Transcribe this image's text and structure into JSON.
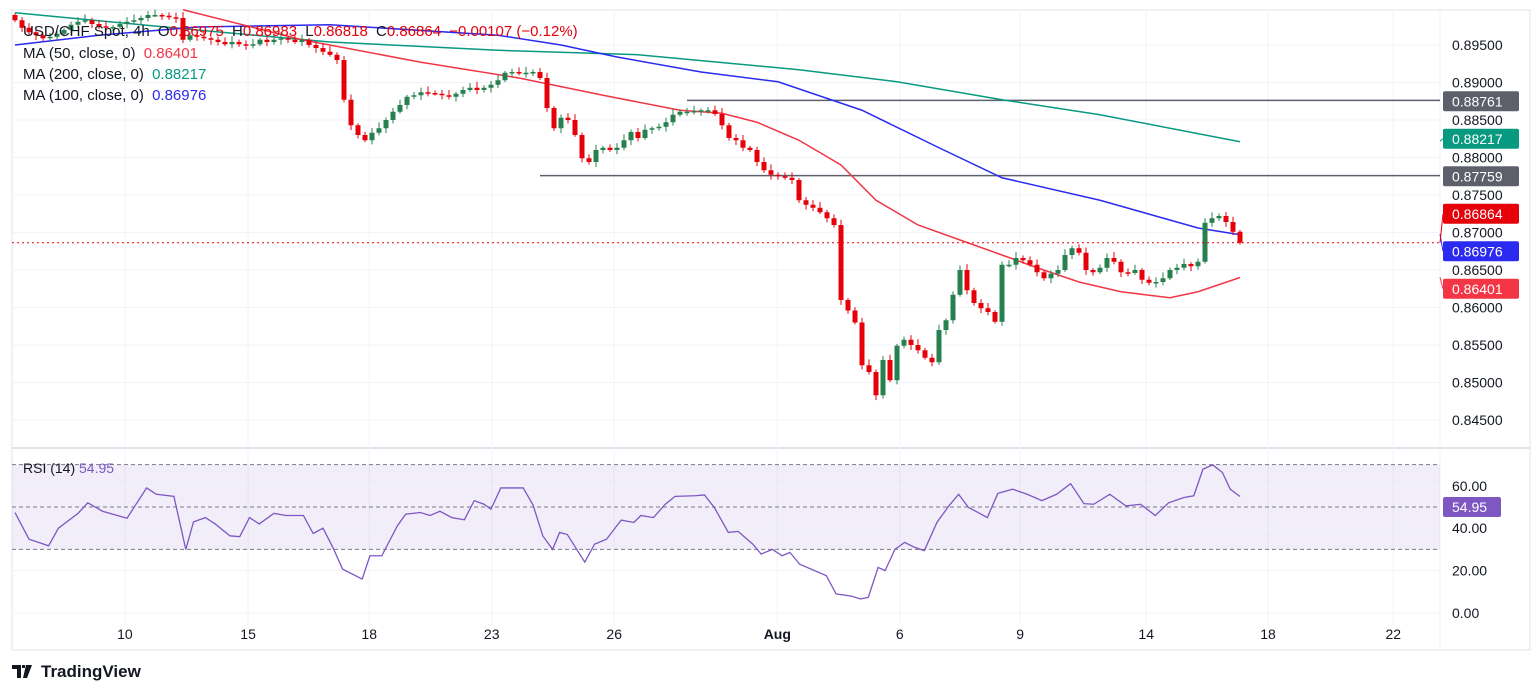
{
  "symbol": {
    "title": "USD/CHF Spot, 4h",
    "o_label": "O",
    "open": "0.86975",
    "h_label": "H",
    "high": "0.86983",
    "l_label": "L",
    "low": "0.86818",
    "c_label": "C",
    "close": "0.86864",
    "change": "−0.00107 (−0.12%)"
  },
  "indicators": [
    {
      "label": "MA (50, close, 0)",
      "value": "0.86401",
      "color": "#f23645"
    },
    {
      "label": "MA (200, close, 0)",
      "value": "0.88217",
      "color": "#089981"
    },
    {
      "label": "MA (100, close, 0)",
      "value": "0.86976",
      "color": "#2a2af0"
    }
  ],
  "rsi": {
    "label": "RSI (14)",
    "value": "54.95",
    "color": "#7e57c2"
  },
  "branding": {
    "name": "TradingView"
  },
  "colors": {
    "up": "#26804f",
    "down": "#e5000a",
    "last": "#e5000a",
    "level": "#5d606b"
  },
  "chart_data": {
    "type": "candlestick",
    "title": "USD/CHF Spot, 4h",
    "ylim": [
      0.8425,
      0.9
    ],
    "price_ticks": [
      "0.84500",
      "0.85000",
      "0.85500",
      "0.86000",
      "0.86500",
      "0.87000",
      "0.87500",
      "0.88000",
      "0.88500",
      "0.89000",
      "0.89500"
    ],
    "x_ticks": [
      {
        "bar": 15.7,
        "label": "10"
      },
      {
        "bar": 33.3,
        "label": "15"
      },
      {
        "bar": 50.6,
        "label": "18"
      },
      {
        "bar": 68.1,
        "label": "23"
      },
      {
        "bar": 85.6,
        "label": "26"
      },
      {
        "bar": 108.9,
        "label": "Aug"
      },
      {
        "bar": 126.4,
        "label": "6"
      },
      {
        "bar": 143.6,
        "label": "9"
      },
      {
        "bar": 161.6,
        "label": "14"
      },
      {
        "bar": 179,
        "label": "18"
      },
      {
        "bar": 196.9,
        "label": "22"
      }
    ],
    "first_open": 0.899,
    "closes": [
      0.8983,
      0.8973,
      0.8967,
      0.8963,
      0.8959,
      0.8961,
      0.8965,
      0.897,
      0.8977,
      0.8981,
      0.8983,
      0.8978,
      0.8975,
      0.8973,
      0.8974,
      0.8978,
      0.8981,
      0.8983,
      0.8986,
      0.899,
      0.899,
      0.8989,
      0.8987,
      0.8986,
      0.8957,
      0.8963,
      0.8961,
      0.8959,
      0.8957,
      0.8954,
      0.8951,
      0.8954,
      0.8951,
      0.895,
      0.8951,
      0.8957,
      0.8954,
      0.8957,
      0.8959,
      0.8957,
      0.8954,
      0.8957,
      0.895,
      0.8946,
      0.8941,
      0.8937,
      0.893,
      0.8877,
      0.8843,
      0.883,
      0.8823,
      0.8833,
      0.8839,
      0.885,
      0.8861,
      0.887,
      0.8881,
      0.8883,
      0.8887,
      0.8886,
      0.8885,
      0.8883,
      0.8881,
      0.8885,
      0.889,
      0.8893,
      0.889,
      0.8893,
      0.8897,
      0.8903,
      0.8913,
      0.8914,
      0.8913,
      0.8913,
      0.8914,
      0.8906,
      0.8866,
      0.8839,
      0.8853,
      0.885,
      0.883,
      0.8799,
      0.8794,
      0.881,
      0.8813,
      0.881,
      0.8813,
      0.8823,
      0.8834,
      0.8826,
      0.8837,
      0.8839,
      0.8841,
      0.8847,
      0.8857,
      0.8861,
      0.8861,
      0.8862,
      0.8863,
      0.8863,
      0.8858,
      0.8843,
      0.8826,
      0.8823,
      0.8813,
      0.881,
      0.8794,
      0.8783,
      0.8777,
      0.8775,
      0.8773,
      0.877,
      0.8743,
      0.8737,
      0.8733,
      0.8727,
      0.8719,
      0.871,
      0.861,
      0.8596,
      0.858,
      0.8523,
      0.8514,
      0.8483,
      0.853,
      0.8503,
      0.8549,
      0.8557,
      0.855,
      0.8543,
      0.8533,
      0.8527,
      0.857,
      0.8583,
      0.8617,
      0.865,
      0.8623,
      0.8606,
      0.8599,
      0.8594,
      0.8581,
      0.8657,
      0.8657,
      0.8666,
      0.8663,
      0.8657,
      0.8647,
      0.8639,
      0.8645,
      0.865,
      0.867,
      0.8679,
      0.8673,
      0.865,
      0.8647,
      0.8653,
      0.8666,
      0.8661,
      0.8647,
      0.8646,
      0.865,
      0.8637,
      0.8633,
      0.8634,
      0.8639,
      0.865,
      0.8653,
      0.8658,
      0.8655,
      0.8661,
      0.8713,
      0.8719,
      0.8722,
      0.8714,
      0.8701,
      0.86864
    ],
    "ma50": [
      [
        24,
        0.8997
      ],
      [
        41,
        0.8957
      ],
      [
        58,
        0.8927
      ],
      [
        72,
        0.8906
      ],
      [
        84,
        0.8883
      ],
      [
        95,
        0.8863
      ],
      [
        101,
        0.8859
      ],
      [
        106,
        0.8847
      ],
      [
        112,
        0.8823
      ],
      [
        118,
        0.879
      ],
      [
        123,
        0.8743
      ],
      [
        129,
        0.871
      ],
      [
        135,
        0.869
      ],
      [
        141,
        0.867
      ],
      [
        146,
        0.8653
      ],
      [
        152,
        0.8634
      ],
      [
        158,
        0.8621
      ],
      [
        165,
        0.8613
      ],
      [
        169,
        0.8621
      ],
      [
        175,
        0.864
      ]
    ],
    "ma100": [
      [
        0,
        0.895
      ],
      [
        12,
        0.8963
      ],
      [
        26,
        0.8974
      ],
      [
        45,
        0.8977
      ],
      [
        69,
        0.8963
      ],
      [
        78,
        0.895
      ],
      [
        86,
        0.8934
      ],
      [
        98,
        0.8914
      ],
      [
        109,
        0.8901
      ],
      [
        121,
        0.8863
      ],
      [
        132,
        0.8813
      ],
      [
        141,
        0.8773
      ],
      [
        155,
        0.8743
      ],
      [
        169,
        0.8706
      ],
      [
        175,
        0.8697
      ]
    ],
    "ma200": [
      [
        0,
        0.8993
      ],
      [
        26,
        0.897
      ],
      [
        45,
        0.8954
      ],
      [
        69,
        0.8943
      ],
      [
        89,
        0.8937
      ],
      [
        112,
        0.8917
      ],
      [
        126,
        0.8901
      ],
      [
        141,
        0.8877
      ],
      [
        155,
        0.8857
      ],
      [
        175,
        0.8821
      ]
    ],
    "levels": [
      {
        "value": 0.88761,
        "label": "0.88761",
        "from_bar": 96
      },
      {
        "value": 0.87759,
        "label": "0.87759",
        "from_bar": 75
      }
    ],
    "axis_labels": [
      {
        "value": 0.88217,
        "label": "0.88217",
        "color": "#089981"
      },
      {
        "value": 0.86976,
        "label": "0.86976",
        "color": "#2a2af0"
      },
      {
        "value": 0.86864,
        "label": "0.86864",
        "color": "#e5000a"
      },
      {
        "value": 0.86401,
        "label": "0.86401",
        "color": "#f23645"
      }
    ],
    "rsi_ticks": [
      "0.00",
      "20.00",
      "40.00",
      "60.00"
    ],
    "rsi_bands": [
      70,
      50,
      30
    ],
    "rsi": [
      [
        0,
        47.4
      ],
      [
        2,
        34.8
      ],
      [
        4.8,
        31.7
      ],
      [
        6.2,
        40
      ],
      [
        9,
        47
      ],
      [
        10.4,
        52
      ],
      [
        12.5,
        48
      ],
      [
        16,
        44.7
      ],
      [
        18.8,
        59
      ],
      [
        20.2,
        56
      ],
      [
        22.7,
        55
      ],
      [
        24.4,
        30
      ],
      [
        25.5,
        43
      ],
      [
        27.2,
        45
      ],
      [
        28.6,
        42
      ],
      [
        30.7,
        36.4
      ],
      [
        32.1,
        36
      ],
      [
        33.5,
        45
      ],
      [
        34.9,
        42
      ],
      [
        37,
        47
      ],
      [
        38.7,
        46
      ],
      [
        41.2,
        46
      ],
      [
        42.6,
        37.5
      ],
      [
        44,
        40
      ],
      [
        45.4,
        31
      ],
      [
        46.8,
        20.7
      ],
      [
        49.6,
        16
      ],
      [
        50.7,
        27
      ],
      [
        52.4,
        27
      ],
      [
        54.6,
        41
      ],
      [
        55.8,
        46.6
      ],
      [
        57.9,
        47.4
      ],
      [
        59.3,
        46
      ],
      [
        60.7,
        48
      ],
      [
        62.4,
        45
      ],
      [
        64.2,
        44
      ],
      [
        65.6,
        53
      ],
      [
        67,
        51.3
      ],
      [
        68,
        49
      ],
      [
        69.4,
        59
      ],
      [
        72.6,
        59
      ],
      [
        74,
        51
      ],
      [
        75.4,
        36.4
      ],
      [
        76.8,
        30
      ],
      [
        77.8,
        38
      ],
      [
        78.9,
        37
      ],
      [
        81.4,
        24
      ],
      [
        82.8,
        32.5
      ],
      [
        84.5,
        34.8
      ],
      [
        86.6,
        43.8
      ],
      [
        88.4,
        42.7
      ],
      [
        89.4,
        46
      ],
      [
        91.2,
        45
      ],
      [
        92.9,
        51.3
      ],
      [
        94.3,
        55
      ],
      [
        97.1,
        55.3
      ],
      [
        98.5,
        55.7
      ],
      [
        99.9,
        49.8
      ],
      [
        101.9,
        38
      ],
      [
        103.3,
        38.5
      ],
      [
        105.4,
        32.5
      ],
      [
        106.6,
        27.8
      ],
      [
        108.2,
        30
      ],
      [
        109.6,
        27
      ],
      [
        110.7,
        28.6
      ],
      [
        112.1,
        23
      ],
      [
        115.9,
        17.6
      ],
      [
        117.3,
        9
      ],
      [
        119.4,
        8
      ],
      [
        120.8,
        6.6
      ],
      [
        121.9,
        7.4
      ],
      [
        123.3,
        21.5
      ],
      [
        124.3,
        20
      ],
      [
        125.7,
        30
      ],
      [
        127.1,
        33.3
      ],
      [
        128.5,
        31
      ],
      [
        129.9,
        29.4
      ],
      [
        131.7,
        42.7
      ],
      [
        133.4,
        50.5
      ],
      [
        134.8,
        56
      ],
      [
        136.2,
        49.8
      ],
      [
        137.6,
        47.4
      ],
      [
        138.9,
        45
      ],
      [
        140.4,
        56.4
      ],
      [
        142.5,
        58.4
      ],
      [
        144.6,
        56
      ],
      [
        146.7,
        53
      ],
      [
        148.8,
        56
      ],
      [
        150.8,
        61
      ],
      [
        152.7,
        51.6
      ],
      [
        154.1,
        51.3
      ],
      [
        156.4,
        56
      ],
      [
        158.7,
        50.5
      ],
      [
        160.8,
        51.3
      ],
      [
        162.9,
        46
      ],
      [
        164.8,
        52
      ],
      [
        167,
        54.5
      ],
      [
        168.4,
        55.3
      ],
      [
        169.7,
        67.8
      ],
      [
        171.1,
        69.9
      ],
      [
        172.5,
        66.2
      ],
      [
        173.6,
        58.4
      ],
      [
        175,
        54.95
      ]
    ]
  }
}
